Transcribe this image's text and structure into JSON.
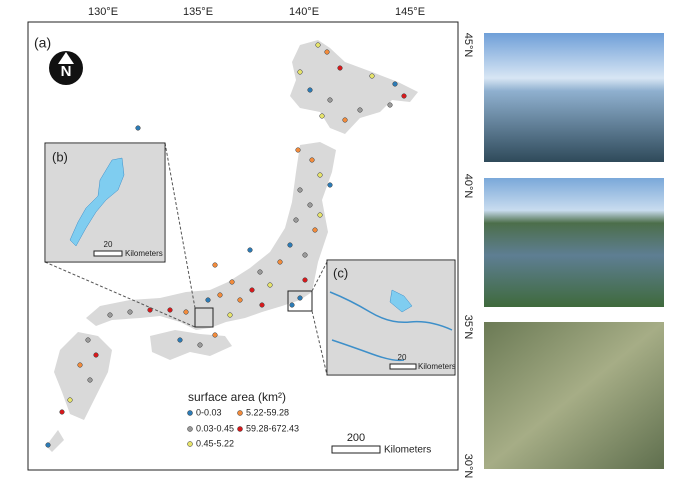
{
  "map": {
    "panel_label": "(a)",
    "longitude_labels": [
      "130°E",
      "135°E",
      "140°E",
      "145°E"
    ],
    "latitude_labels": [
      "45°N",
      "40°N",
      "35°N",
      "30°N"
    ],
    "legend": {
      "title": "surface area (km²)",
      "items": [
        {
          "label": "0-0.03",
          "color": "#2c7bb6"
        },
        {
          "label": "0.03-0.45",
          "color": "#9a9a9a"
        },
        {
          "label": "0.45-5.22",
          "color": "#e6e36a"
        },
        {
          "label": "5.22-59.28",
          "color": "#f28b3c"
        },
        {
          "label": "59.28-672.43",
          "color": "#d7191c"
        }
      ]
    },
    "scale_bar": {
      "value": "200",
      "unit": "Kilometers"
    }
  },
  "inset_b": {
    "label": "(b)",
    "scale_bar": {
      "value": "20",
      "unit": "Kilometers"
    }
  },
  "inset_c": {
    "label": "(c)",
    "scale_bar": {
      "value": "20",
      "unit": "Kilometers"
    }
  }
}
